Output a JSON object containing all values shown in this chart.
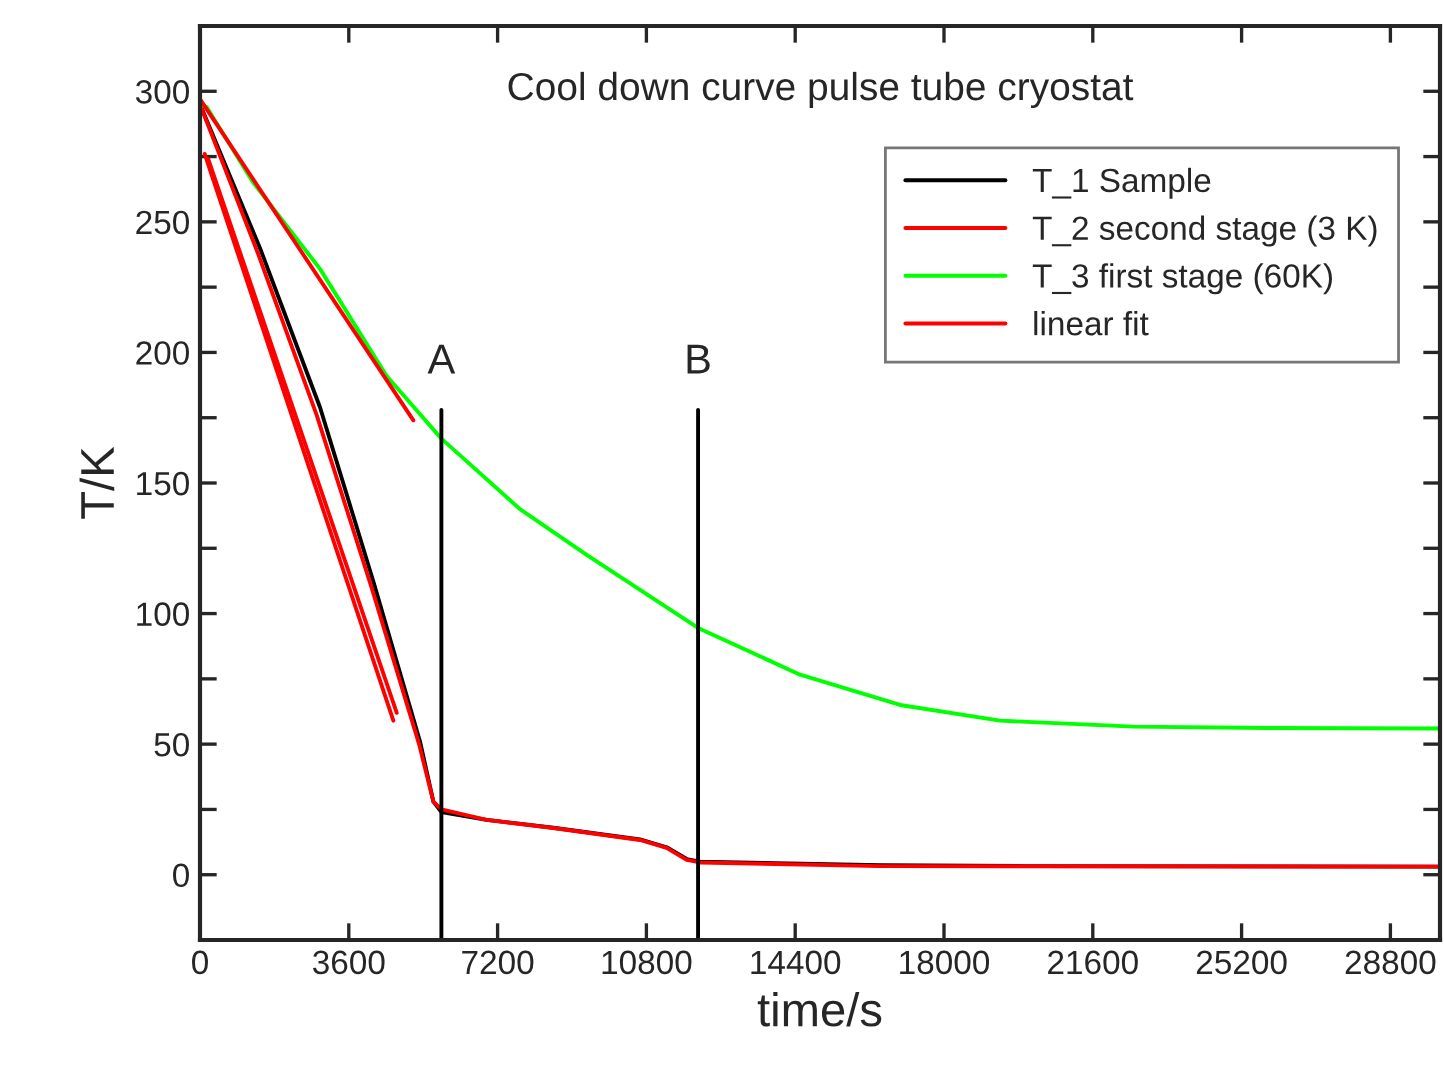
{
  "chart_data": {
    "type": "line",
    "title": "Cool down curve pulse tube cryostat",
    "xlabel": "time/s",
    "ylabel": "T/K",
    "xlim": [
      0,
      30000
    ],
    "ylim": [
      -25,
      325
    ],
    "xticks": [
      0,
      3600,
      7200,
      10800,
      14400,
      18000,
      21600,
      25200,
      28800
    ],
    "yticks": [
      0,
      {
        "value": 25,
        "label": null
      },
      50,
      {
        "value": 75,
        "label": null
      },
      100,
      {
        "value": 125,
        "label": null
      },
      150,
      {
        "value": 175,
        "label": null
      },
      200,
      {
        "value": 225,
        "label": null
      },
      250,
      {
        "value": 275,
        "label": null
      },
      300
    ],
    "legend": "top right",
    "grid": false,
    "marker": "none",
    "line_style": "solid",
    "series": [
      {
        "name": "T_1 Sample",
        "color": "#000000",
        "x": [
          0,
          1450,
          2903,
          4200,
          5323,
          5646,
          5840,
          6935,
          8548,
          10645,
          11290,
          11774,
          12097,
          16453,
          20000,
          30000
        ],
        "values": [
          295,
          240,
          179,
          112,
          51,
          28,
          24,
          21,
          18,
          13.5,
          10.5,
          6,
          5,
          3.6,
          3.3,
          3.1
        ]
      },
      {
        "name": "T_2 second stage (3 K)",
        "color": "#ff0000",
        "x": [
          0,
          1400,
          2823,
          4150,
          5300,
          5646,
          5840,
          6935,
          8548,
          10645,
          11290,
          11774,
          12097,
          16453,
          30000
        ],
        "values": [
          295,
          238,
          176,
          110,
          50,
          28,
          25,
          21,
          17.9,
          13.3,
          10.3,
          5.7,
          4.7,
          3.3,
          3.1
        ]
      },
      {
        "name": "T_3 first stage (60K)",
        "color": "#00ff00",
        "x": [
          0,
          161,
          1290,
          2903,
          4516,
          5840,
          7742,
          9355,
          12050,
          14517,
          16937,
          19356,
          22583,
          25800,
          30000
        ],
        "values": [
          295,
          294,
          265,
          232,
          191,
          167,
          140,
          122.5,
          94.5,
          76.6,
          65,
          59,
          56.7,
          56.2,
          56
        ]
      },
      {
        "name": "linear fit",
        "color": "#ff0000",
        "x": [
          0,
          5162
        ],
        "values": [
          297,
          174
        ]
      },
      {
        "color": "#ff0000",
        "x": [
          113,
          4678
        ],
        "values": [
          276,
          59
        ]
      },
      {
        "color": "#ff0000",
        "x": [
          200,
          4760
        ],
        "values": [
          274,
          62
        ]
      },
      {
        "color": "#000000",
        "x": [
          5840,
          5840
        ],
        "values": [
          -25,
          178
        ]
      },
      {
        "color": "#000000",
        "x": [
          12050,
          12050
        ],
        "values": [
          -25,
          178
        ]
      }
    ],
    "annotations": [
      "A",
      "B"
    ]
  }
}
